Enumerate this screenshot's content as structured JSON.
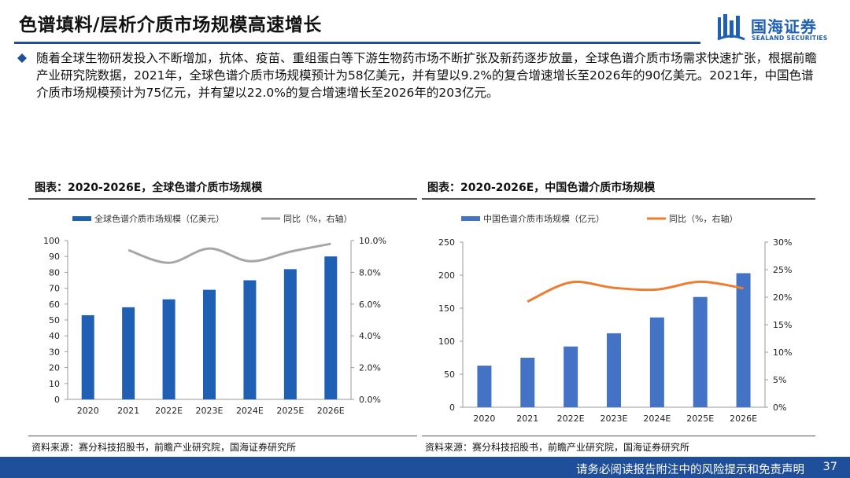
{
  "header": {
    "title": "色谱填料/层析介质市场规模高速增长",
    "logo_cn": "国海证券",
    "logo_en": "SEALAND SECURITIES"
  },
  "bullet": "随着全球生物研发投入不断增加，抗体、疫苗、重组蛋白等下游生物药市场不断扩张及新药逐步放量，全球色谱介质市场需求快速扩张，根据前瞻产业研究院数据，2021年，全球色谱介质市场规模预计为58亿美元，并有望以9.2%的复合增速增长至2026年的90亿美元。2021年，中国色谱介质市场规模预计为75亿元，并有望以22.0%的复合增速增长至2026年的203亿元。",
  "panels": [
    {
      "title": "图表：2020-2026E，全球色谱介质市场规模",
      "source": "资料来源：赛分科技招股书，前瞻产业研究院，国海证券研究所"
    },
    {
      "title": "图表：2020-2026E，中国色谱介质市场规模",
      "source": "资料来源：赛分科技招股书，前瞻产业研究院，国海证券研究所"
    }
  ],
  "footer": {
    "text": "请务必阅读报告附注中的风险提示和免责声明",
    "page": "37"
  },
  "colors": {
    "bar_global": "#1f5fb4",
    "bar_china": "#4472c4",
    "line_global": "#a6a6a6",
    "line_china": "#ed7d31",
    "brand": "#1f4e9a"
  },
  "chart_data": [
    {
      "type": "bar",
      "title": "图表：2020-2026E，全球色谱介质市场规模",
      "categories": [
        "2020",
        "2021",
        "2022E",
        "2023E",
        "2024E",
        "2025E",
        "2026E"
      ],
      "series": [
        {
          "name": "全球色谱介质市场规模（亿美元）",
          "type": "bar",
          "axis": "left",
          "values": [
            53,
            58,
            63,
            69,
            75,
            82,
            90
          ]
        },
        {
          "name": "同比（%，右轴）",
          "type": "line",
          "axis": "right",
          "values": [
            null,
            9.4,
            8.6,
            9.5,
            8.7,
            9.3,
            9.8
          ]
        }
      ],
      "ylim": [
        0,
        100
      ],
      "y_ticks": [
        "0",
        "10",
        "20",
        "30",
        "40",
        "50",
        "60",
        "70",
        "80",
        "90",
        "100"
      ],
      "y2lim": [
        0,
        10
      ],
      "y2_ticks": [
        "0.0%",
        "2.0%",
        "4.0%",
        "6.0%",
        "8.0%",
        "10.0%"
      ],
      "legend": "top"
    },
    {
      "type": "bar",
      "title": "图表：2020-2026E，中国色谱介质市场规模",
      "categories": [
        "2020",
        "2021",
        "2022E",
        "2023E",
        "2024E",
        "2025E",
        "2026E"
      ],
      "series": [
        {
          "name": "中国色谱介质市场规模（亿元）",
          "type": "bar",
          "axis": "left",
          "values": [
            63,
            75,
            92,
            112,
            136,
            167,
            203
          ]
        },
        {
          "name": "同比（%，右轴）",
          "type": "line",
          "axis": "right",
          "values": [
            null,
            19.2,
            22.7,
            21.7,
            21.4,
            22.8,
            21.6
          ]
        }
      ],
      "ylim": [
        0,
        250
      ],
      "y_ticks": [
        "0",
        "50",
        "100",
        "150",
        "200",
        "250"
      ],
      "y2lim": [
        0,
        30
      ],
      "y2_ticks": [
        "0%",
        "5%",
        "10%",
        "15%",
        "20%",
        "25%",
        "30%"
      ],
      "legend": "top"
    }
  ]
}
